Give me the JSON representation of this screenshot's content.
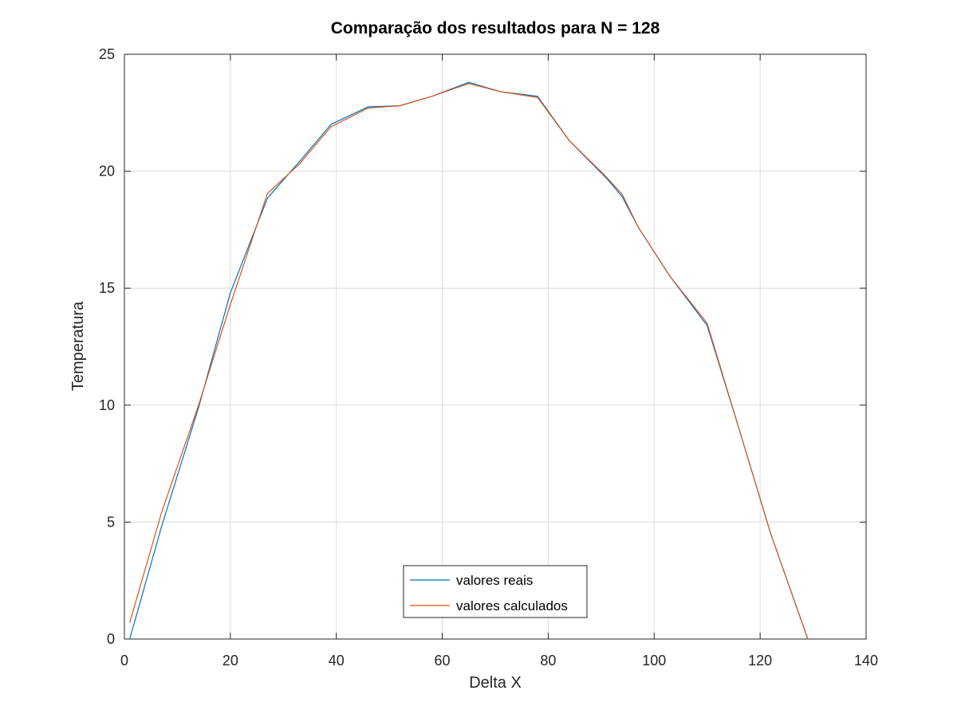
{
  "chart_data": {
    "type": "line",
    "title": "Comparação dos resultados para N = 128",
    "xlabel": "Delta X",
    "ylabel": "Temperatura",
    "xlim": [
      0,
      140
    ],
    "ylim": [
      0,
      25
    ],
    "xticks": [
      0,
      20,
      40,
      60,
      80,
      100,
      120,
      140
    ],
    "yticks": [
      0,
      5,
      10,
      15,
      20,
      25
    ],
    "grid": true,
    "legend_position": "bottom-center",
    "series": [
      {
        "name": "valores reais",
        "color": "#0072BD",
        "x": [
          1,
          7,
          14,
          20,
          27,
          33,
          39,
          46,
          52,
          58,
          65,
          71,
          78,
          84,
          91,
          94,
          97,
          103,
          110,
          116,
          122,
          129
        ],
        "y": [
          0,
          4.8,
          9.9,
          14.8,
          18.85,
          20.4,
          22.0,
          22.75,
          22.8,
          23.2,
          23.8,
          23.4,
          23.2,
          21.3,
          19.7,
          18.9,
          17.6,
          15.5,
          13.4,
          9.0,
          4.5,
          0
        ]
      },
      {
        "name": "valores calculados",
        "color": "#D95319",
        "x": [
          1,
          7,
          14,
          20,
          27,
          33,
          39,
          46,
          52,
          58,
          65,
          71,
          78,
          84,
          91,
          94,
          97,
          103,
          110,
          116,
          122,
          129
        ],
        "y": [
          0.7,
          5.4,
          10.0,
          14.3,
          19.05,
          20.3,
          21.9,
          22.7,
          22.8,
          23.2,
          23.75,
          23.4,
          23.15,
          21.3,
          19.75,
          19.0,
          17.6,
          15.5,
          13.5,
          9.0,
          4.5,
          0
        ]
      }
    ]
  }
}
